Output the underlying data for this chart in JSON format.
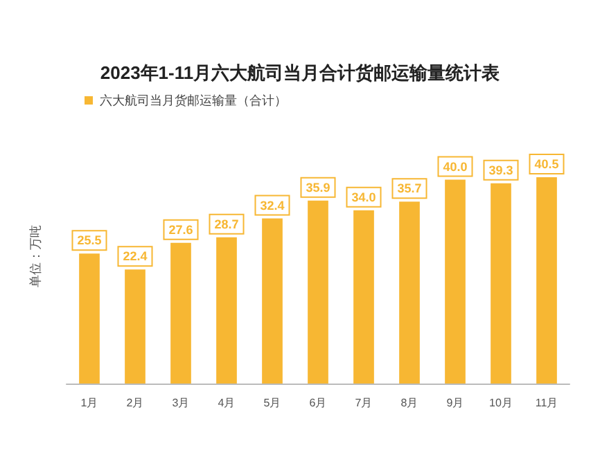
{
  "chart_data": {
    "type": "bar",
    "title": "2023年1-11月六大航司当月合计货邮运输量统计表",
    "ylabel": "单位：万吨",
    "legend": "top left",
    "categories": [
      "1月",
      "2月",
      "3月",
      "4月",
      "5月",
      "6月",
      "7月",
      "8月",
      "9月",
      "10月",
      "11月"
    ],
    "series": [
      {
        "name": "六大航司当月货邮运输量（合计）",
        "color": "#f7b733",
        "values": [
          25.5,
          22.4,
          27.6,
          28.7,
          32.4,
          35.9,
          34.0,
          35.7,
          40.0,
          39.3,
          40.5
        ],
        "value_labels": [
          "25.5",
          "22.4",
          "27.6",
          "28.7",
          "32.4",
          "35.9",
          "34.0",
          "35.7",
          "40.0",
          "39.3",
          "40.5"
        ]
      }
    ],
    "grid": false
  }
}
